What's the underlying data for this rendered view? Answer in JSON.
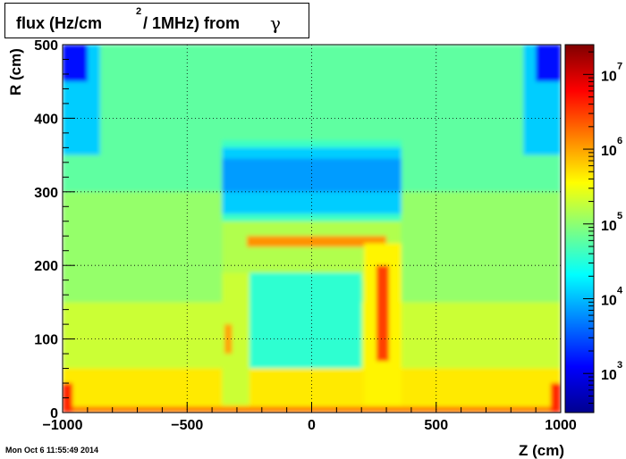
{
  "title": {
    "prefix": "flux (Hz/cm",
    "superscript": "2",
    "suffix": "/ 1MHz) from",
    "particle": "γ"
  },
  "timestamp": "Mon Oct  6 11:55:49 2014",
  "chart_data": {
    "type": "heatmap",
    "xlabel": "Z (cm)",
    "ylabel": "R (cm)",
    "xlim": [
      -1000,
      1000
    ],
    "ylim": [
      0,
      500
    ],
    "xticks": [
      -1000,
      -500,
      0,
      500,
      1000
    ],
    "xtick_labels": [
      "−1000",
      "−500",
      "0",
      "500",
      "1000"
    ],
    "yticks": [
      0,
      100,
      200,
      300,
      400,
      500
    ],
    "ytick_labels": [
      "0",
      "100",
      "200",
      "300",
      "400",
      "500"
    ],
    "grid": true,
    "zscale": "log",
    "zlim": [
      300,
      25000000
    ],
    "colorbar": {
      "labels": [
        {
          "base": "10",
          "exp": "3",
          "value": 1000
        },
        {
          "base": "10",
          "exp": "4",
          "value": 10000
        },
        {
          "base": "10",
          "exp": "5",
          "value": 100000
        },
        {
          "base": "10",
          "exp": "6",
          "value": 1000000
        },
        {
          "base": "10",
          "exp": "7",
          "value": 10000000
        }
      ]
    },
    "regions": [
      {
        "zmin": -1000,
        "zmax": 1000,
        "rmin": 0,
        "rmax": 500,
        "value": 60000
      },
      {
        "zmin": -1000,
        "zmax": 1000,
        "rmin": 0,
        "rmax": 300,
        "value": 110000
      },
      {
        "zmin": -1000,
        "zmax": 1000,
        "rmin": 0,
        "rmax": 150,
        "value": 200000
      },
      {
        "zmin": -1000,
        "zmax": 1000,
        "rmin": 0,
        "rmax": 60,
        "value": 450000
      },
      {
        "zmin": -1000,
        "zmax": -850,
        "rmin": 350,
        "rmax": 500,
        "value": 12000
      },
      {
        "zmin": 850,
        "zmax": 1000,
        "rmin": 350,
        "rmax": 500,
        "value": 12000
      },
      {
        "zmin": -1000,
        "zmax": -900,
        "rmin": 450,
        "rmax": 500,
        "value": 1500
      },
      {
        "zmin": 900,
        "zmax": 1000,
        "rmin": 450,
        "rmax": 500,
        "value": 1500
      },
      {
        "zmin": -360,
        "zmax": 360,
        "rmin": 190,
        "rmax": 370,
        "value": 40000
      },
      {
        "zmin": -360,
        "zmax": 360,
        "rmin": 270,
        "rmax": 360,
        "value": 12000
      },
      {
        "zmin": -360,
        "zmax": 360,
        "rmin": 300,
        "rmax": 345,
        "value": 7000
      },
      {
        "zmin": -360,
        "zmax": 360,
        "rmin": 180,
        "rmax": 260,
        "value": 150000
      },
      {
        "zmin": -260,
        "zmax": 300,
        "rmin": 225,
        "rmax": 240,
        "value": 1200000
      },
      {
        "zmin": -250,
        "zmax": 200,
        "rmin": 60,
        "rmax": 190,
        "value": 35000
      },
      {
        "zmin": -360,
        "zmax": -250,
        "rmin": 10,
        "rmax": 190,
        "value": 200000
      },
      {
        "zmin": 210,
        "zmax": 360,
        "rmin": 10,
        "rmax": 230,
        "value": 400000
      },
      {
        "zmin": 260,
        "zmax": 310,
        "rmin": 70,
        "rmax": 200,
        "value": 3000000
      },
      {
        "zmin": -350,
        "zmax": -320,
        "rmin": 80,
        "rmax": 120,
        "value": 1000000
      },
      {
        "zmin": -1000,
        "zmax": 1000,
        "rmin": 0,
        "rmax": 8,
        "value": 1500000
      },
      {
        "zmin": -1000,
        "zmax": -960,
        "rmin": 0,
        "rmax": 40,
        "value": 4000000
      },
      {
        "zmin": 960,
        "zmax": 1000,
        "rmin": 0,
        "rmax": 40,
        "value": 4000000
      }
    ]
  }
}
